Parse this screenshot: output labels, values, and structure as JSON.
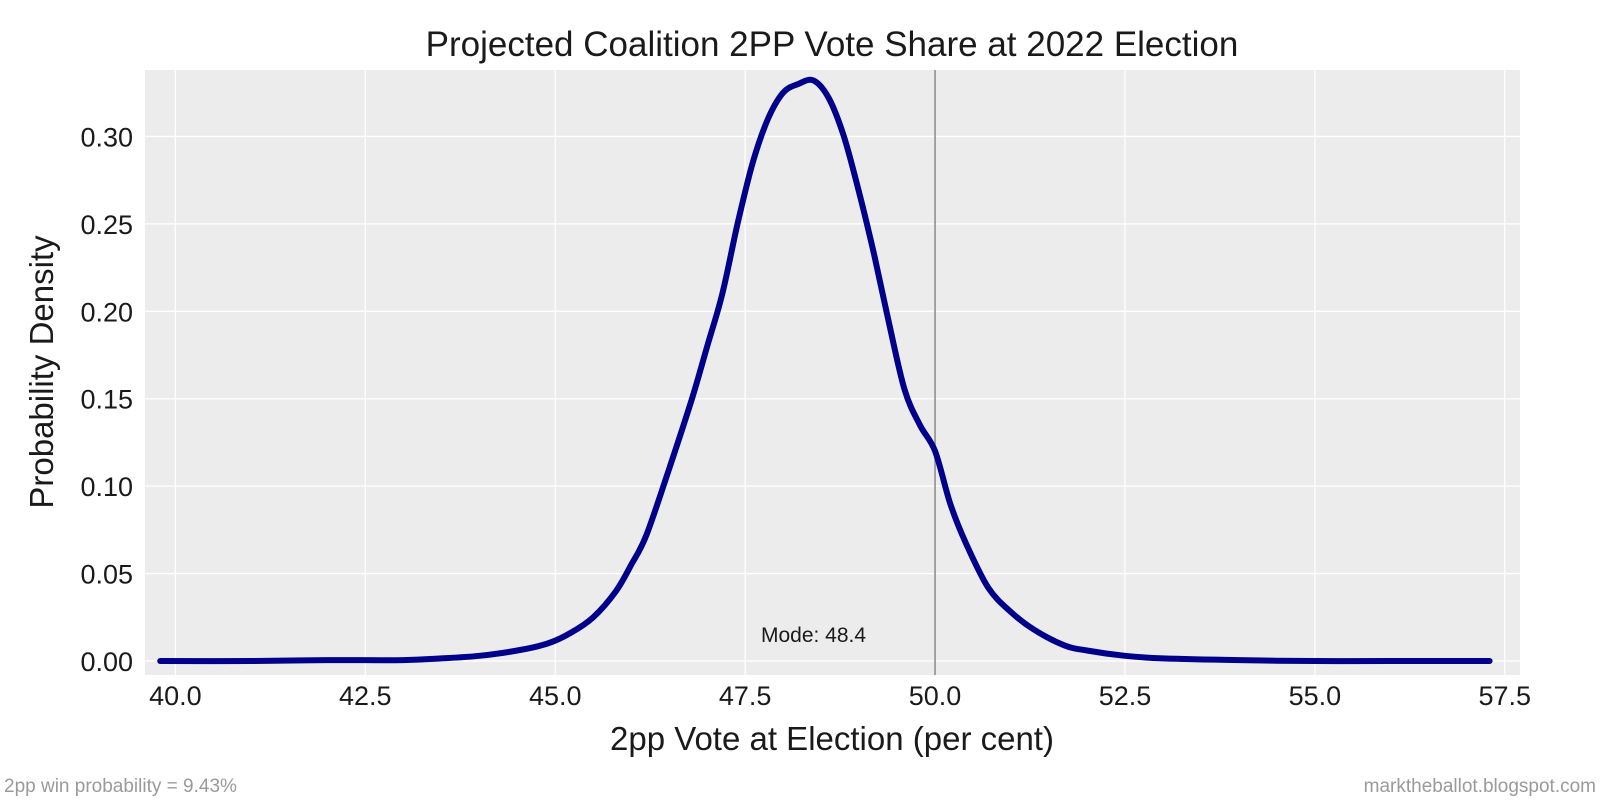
{
  "chart_data": {
    "type": "line",
    "title": "Projected Coalition 2PP Vote Share at 2022 Election",
    "xlabel": "2pp Vote at Election (per cent)",
    "ylabel": "Probability Density",
    "xlim": [
      39.6,
      57.7
    ],
    "ylim": [
      -0.008,
      0.338
    ],
    "xticks": [
      "40.0",
      "42.5",
      "45.0",
      "47.5",
      "50.0",
      "52.5",
      "55.0",
      "57.5"
    ],
    "yticks": [
      "0.00",
      "0.05",
      "0.10",
      "0.15",
      "0.20",
      "0.25",
      "0.30"
    ],
    "grid": true,
    "line_color": "#00008b",
    "vline_x": 50.0,
    "vline_color": "#888888",
    "annotation": {
      "text": "Mode: 48.4",
      "x": 48.4,
      "y": 0.011
    },
    "series": [
      {
        "x": [
          39.8,
          41.0,
          42.0,
          43.0,
          43.5,
          44.0,
          44.5,
          44.9,
          45.2,
          45.5,
          45.8,
          46.0,
          46.2,
          46.5,
          46.8,
          47.0,
          47.2,
          47.4,
          47.6,
          47.8,
          48.0,
          48.2,
          48.4,
          48.6,
          48.8,
          49.0,
          49.2,
          49.4,
          49.6,
          49.8,
          50.0,
          50.2,
          50.4,
          50.7,
          51.0,
          51.3,
          51.7,
          52.0,
          52.5,
          53.0,
          54.0,
          55.0,
          56.0,
          57.3
        ],
        "y": [
          0.0,
          0.0,
          0.0005,
          0.0005,
          0.0015,
          0.003,
          0.006,
          0.01,
          0.016,
          0.025,
          0.04,
          0.055,
          0.072,
          0.11,
          0.15,
          0.18,
          0.21,
          0.25,
          0.285,
          0.31,
          0.325,
          0.33,
          0.332,
          0.322,
          0.3,
          0.268,
          0.232,
          0.192,
          0.155,
          0.135,
          0.12,
          0.09,
          0.068,
          0.042,
          0.028,
          0.018,
          0.009,
          0.006,
          0.003,
          0.0015,
          0.0005,
          0.0,
          0.0,
          0.0
        ]
      }
    ]
  },
  "footer": {
    "left": "2pp win probability = 9.43%",
    "right": "marktheballot.blogspot.com"
  }
}
